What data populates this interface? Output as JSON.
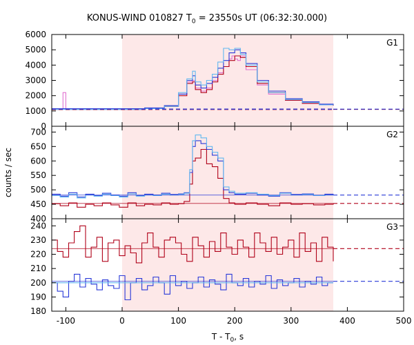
{
  "chart_data": {
    "type": "line",
    "title": {
      "prefix": "KONUS-WIND 010827 T",
      "sub": "0",
      "suffix": " = 23550s UT (06:32:30.000)"
    },
    "xlabel": {
      "prefix": "T - T",
      "sub": "0",
      "suffix": ", s"
    },
    "ylabel": "counts / sec",
    "xlim": [
      -125,
      500
    ],
    "x_ticks": [
      "-100",
      "0",
      "100",
      "200",
      "300",
      "400",
      "500"
    ],
    "highlight_interval": [
      0,
      375
    ],
    "colors": {
      "highlight": "#fde8e8",
      "dark_red": "#b00018",
      "pink": "#e070d0",
      "blue": "#2838d8",
      "light_blue": "#60b8f0",
      "bg_red_dashed": "#a00020",
      "bg_blue_dashed": "#2838d8"
    },
    "panels": [
      {
        "label": "G1",
        "ylim": [
          0,
          6000
        ],
        "y_ticks": [
          "0",
          "1000",
          "2000",
          "3000",
          "4000",
          "5000",
          "6000"
        ],
        "background": [
          {
            "name": "dark_red",
            "value": 1100
          },
          {
            "name": "blue",
            "value": 1120
          }
        ],
        "curves": [
          {
            "color": "pink",
            "x": [
              -125,
              -110,
              -105,
              -100,
              0,
              40,
              75,
              100,
              115,
              125,
              130,
              140,
              150,
              160,
              170,
              180,
              190,
              195,
              200,
              205,
              210,
              220,
              240,
              260,
              290,
              320,
              350,
              375
            ],
            "y": [
              1100,
              1100,
              2200,
              1100,
              1100,
              1150,
              1300,
              2100,
              2900,
              3000,
              2500,
              2300,
              2500,
              3000,
              3500,
              3900,
              4400,
              4600,
              4400,
              4300,
              4600,
              3700,
              2700,
              2100,
              1700,
              1500,
              1400,
              1350
            ]
          },
          {
            "color": "dark_red",
            "x": [
              -125,
              -105,
              -100,
              0,
              40,
              75,
              100,
              115,
              125,
              130,
              140,
              150,
              160,
              170,
              180,
              190,
              200,
              210,
              220,
              240,
              260,
              290,
              320,
              350,
              375
            ],
            "y": [
              1100,
              1150,
              1100,
              1100,
              1150,
              1300,
              2000,
              2800,
              2900,
              2400,
              2200,
              2400,
              2900,
              3400,
              3900,
              4300,
              4600,
              4500,
              3900,
              2800,
              2200,
              1700,
              1500,
              1400,
              1350
            ]
          },
          {
            "color": "blue",
            "x": [
              -125,
              -100,
              0,
              40,
              75,
              100,
              115,
              125,
              130,
              140,
              150,
              160,
              170,
              180,
              190,
              200,
              210,
              220,
              240,
              260,
              290,
              320,
              350,
              375
            ],
            "y": [
              1150,
              1150,
              1150,
              1200,
              1350,
              2100,
              3000,
              3300,
              2700,
              2500,
              2800,
              3200,
              3800,
              4300,
              4800,
              5000,
              4800,
              4100,
              3000,
              2300,
              1800,
              1600,
              1450,
              1400
            ]
          },
          {
            "color": "light_blue",
            "x": [
              -125,
              -100,
              0,
              40,
              75,
              100,
              115,
              125,
              130,
              140,
              150,
              160,
              170,
              180,
              190,
              200,
              210,
              220,
              240,
              260,
              290,
              320,
              350,
              375
            ],
            "y": [
              1100,
              1100,
              1100,
              1150,
              1300,
              2200,
              3100,
              3600,
              2900,
              2700,
              3000,
              3400,
              4200,
              5100,
              5000,
              5100,
              4700,
              4000,
              2900,
              2200,
              1750,
              1550,
              1400,
              1380
            ]
          }
        ]
      },
      {
        "label": "G2",
        "ylim": [
          400,
          720
        ],
        "y_ticks": [
          "400",
          "450",
          "500",
          "550",
          "600",
          "650",
          "700"
        ],
        "background": [
          {
            "name": "dark_red",
            "value": 453
          },
          {
            "name": "blue",
            "value": 482
          }
        ],
        "curves": [
          {
            "color": "dark_red",
            "x": [
              -125,
              -110,
              -95,
              -80,
              -65,
              -50,
              -35,
              -20,
              -5,
              10,
              25,
              40,
              55,
              70,
              85,
              100,
              110,
              120,
              125,
              130,
              140,
              150,
              160,
              170,
              180,
              190,
              200,
              220,
              240,
              260,
              280,
              300,
              320,
              340,
              360,
              375
            ],
            "y": [
              452,
              445,
              455,
              440,
              450,
              445,
              455,
              448,
              440,
              455,
              445,
              450,
              448,
              455,
              450,
              452,
              460,
              520,
              600,
              610,
              640,
              590,
              580,
              540,
              470,
              455,
              450,
              455,
              450,
              445,
              455,
              450,
              452,
              448,
              450,
              452
            ]
          },
          {
            "color": "blue",
            "x": [
              -125,
              -110,
              -95,
              -80,
              -65,
              -50,
              -35,
              -20,
              -5,
              10,
              25,
              40,
              55,
              70,
              85,
              100,
              110,
              120,
              125,
              130,
              140,
              150,
              160,
              170,
              180,
              190,
              200,
              220,
              240,
              260,
              280,
              300,
              320,
              340,
              360,
              375
            ],
            "y": [
              485,
              478,
              490,
              475,
              485,
              480,
              488,
              482,
              478,
              490,
              480,
              485,
              482,
              488,
              484,
              486,
              490,
              560,
              650,
              670,
              660,
              640,
              620,
              600,
              500,
              490,
              485,
              488,
              482,
              478,
              490,
              484,
              486,
              480,
              485,
              484
            ]
          },
          {
            "color": "light_blue",
            "x": [
              -125,
              -110,
              -95,
              -80,
              -65,
              -50,
              -35,
              -20,
              -5,
              10,
              25,
              40,
              55,
              70,
              85,
              100,
              110,
              120,
              125,
              130,
              140,
              150,
              160,
              170,
              180,
              190,
              200,
              220,
              240,
              260,
              280,
              300,
              320,
              340,
              360,
              375
            ],
            "y": [
              480,
              475,
              485,
              472,
              482,
              478,
              485,
              480,
              475,
              486,
              478,
              482,
              480,
              485,
              482,
              484,
              488,
              570,
              670,
              690,
              680,
              650,
              630,
              610,
              510,
              495,
              488,
              490,
              485,
              480,
              488,
              482,
              484,
              480,
              482,
              482
            ]
          }
        ]
      },
      {
        "label": "G3",
        "ylim": [
          180,
          245
        ],
        "y_ticks": [
          "180",
          "190",
          "200",
          "210",
          "220",
          "230",
          "240"
        ],
        "background": [
          {
            "name": "dark_red",
            "value": 224
          },
          {
            "name": "blue",
            "value": 201
          }
        ],
        "curves": [
          {
            "color": "dark_red",
            "x": [
              -125,
              -115,
              -105,
              -95,
              -85,
              -75,
              -65,
              -55,
              -45,
              -35,
              -25,
              -15,
              -5,
              5,
              15,
              25,
              35,
              45,
              55,
              65,
              75,
              85,
              95,
              105,
              115,
              125,
              135,
              145,
              155,
              165,
              175,
              185,
              195,
              205,
              215,
              225,
              235,
              245,
              255,
              265,
              275,
              285,
              295,
              305,
              315,
              325,
              335,
              345,
              355,
              365,
              375
            ],
            "y": [
              230,
              222,
              218,
              228,
              236,
              240,
              218,
              225,
              232,
              215,
              228,
              230,
              219,
              226,
              221,
              214,
              228,
              235,
              225,
              218,
              230,
              232,
              228,
              220,
              215,
              232,
              226,
              218,
              229,
              222,
              235,
              225,
              220,
              230,
              225,
              218,
              235,
              228,
              222,
              232,
              220,
              225,
              230,
              218,
              235,
              222,
              228,
              215,
              232,
              225,
              215
            ]
          },
          {
            "color": "blue",
            "x": [
              -125,
              -115,
              -105,
              -95,
              -85,
              -75,
              -65,
              -55,
              -45,
              -35,
              -25,
              -15,
              -5,
              5,
              15,
              25,
              35,
              45,
              55,
              65,
              75,
              85,
              95,
              105,
              115,
              125,
              135,
              145,
              155,
              165,
              175,
              185,
              195,
              205,
              215,
              225,
              235,
              245,
              255,
              265,
              275,
              285,
              295,
              305,
              315,
              325,
              335,
              345,
              355,
              365,
              375
            ],
            "y": [
              200,
              194,
              190,
              201,
              206,
              197,
              203,
              199,
              195,
              202,
              198,
              196,
              205,
              188,
              200,
              203,
              195,
              198,
              204,
              200,
              192,
              205,
              198,
              201,
              196,
              200,
              204,
              197,
              202,
              199,
              195,
              206,
              200,
              198,
              203,
              197,
              201,
              199,
              205,
              196,
              202,
              198,
              200,
              203,
              197,
              201,
              199,
              204,
              198,
              200,
              200
            ]
          },
          {
            "color": "light_blue",
            "x": [
              -125,
              375
            ],
            "y": [
              200,
              200
            ]
          }
        ]
      }
    ]
  }
}
